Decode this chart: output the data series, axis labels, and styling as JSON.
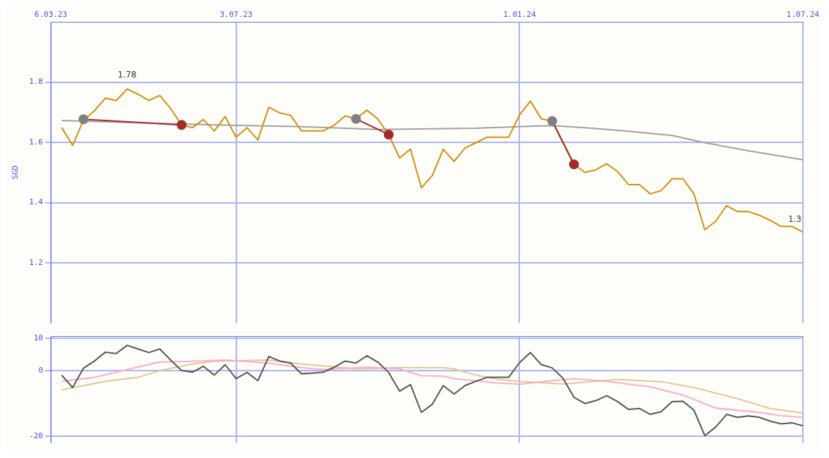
{
  "chart_data": [
    {
      "type": "line",
      "ylabel": "SGD",
      "x": [
        "2023-03-13",
        "2023-03-20",
        "2023-03-27",
        "2023-04-03",
        "2023-04-10",
        "2023-04-17",
        "2023-04-24",
        "2023-05-01",
        "2023-05-08",
        "2023-05-15",
        "2023-05-22",
        "2023-05-29",
        "2023-06-05",
        "2023-06-12",
        "2023-06-19",
        "2023-06-26",
        "2023-07-03",
        "2023-07-10",
        "2023-07-17",
        "2023-07-24",
        "2023-07-31",
        "2023-08-07",
        "2023-08-14",
        "2023-08-21",
        "2023-08-28",
        "2023-09-04",
        "2023-09-11",
        "2023-09-18",
        "2023-09-25",
        "2023-10-02",
        "2023-10-09",
        "2023-10-16",
        "2023-10-23",
        "2023-10-30",
        "2023-11-06",
        "2023-11-13",
        "2023-11-20",
        "2023-11-27",
        "2023-12-04",
        "2023-12-11",
        "2023-12-18",
        "2023-12-25",
        "2024-01-01",
        "2024-01-08",
        "2024-01-15",
        "2024-01-22",
        "2024-01-29",
        "2024-02-05",
        "2024-02-12",
        "2024-02-19",
        "2024-02-26",
        "2024-03-04",
        "2024-03-11",
        "2024-03-18",
        "2024-03-25",
        "2024-04-01",
        "2024-04-08",
        "2024-04-15",
        "2024-04-22",
        "2024-04-29",
        "2024-05-06",
        "2024-05-13",
        "2024-05-20",
        "2024-05-27",
        "2024-06-03",
        "2024-06-10",
        "2024-06-17",
        "2024-06-24",
        "2024-07-01"
      ],
      "series": [
        {
          "color": "#a0a0a0",
          "x": [
            "2023-03-13",
            "2023-06-19",
            "2023-08-14",
            "2023-10-02",
            "2023-12-04",
            "2024-01-01",
            "2024-01-22",
            "2024-02-12",
            "2024-03-11",
            "2024-04-08",
            "2024-04-29",
            "2024-05-27",
            "2024-07-01"
          ],
          "values": [
            1.673,
            1.658,
            1.652,
            1.643,
            1.647,
            1.652,
            1.656,
            1.649,
            1.637,
            1.623,
            1.599,
            1.572,
            1.542
          ]
        },
        {
          "color": "#d4900a",
          "values": [
            1.649,
            1.59,
            1.674,
            1.705,
            1.747,
            1.739,
            1.777,
            1.76,
            1.739,
            1.756,
            1.712,
            1.658,
            1.649,
            1.676,
            1.638,
            1.686,
            1.617,
            1.649,
            1.608,
            1.717,
            1.698,
            1.69,
            1.638,
            1.638,
            1.638,
            1.657,
            1.688,
            1.678,
            1.707,
            1.678,
            1.626,
            1.548,
            1.578,
            1.449,
            1.49,
            1.577,
            1.537,
            1.581,
            1.599,
            1.617,
            1.617,
            1.617,
            1.691,
            1.737,
            1.678,
            1.671,
            1.599,
            1.527,
            1.5,
            1.509,
            1.529,
            1.503,
            1.46,
            1.46,
            1.429,
            1.44,
            1.479,
            1.479,
            1.429,
            1.31,
            1.338,
            1.39,
            1.37,
            1.37,
            1.358,
            1.341,
            1.321,
            1.321,
            1.302
          ]
        },
        {
          "color": "#a52a2a",
          "colors": [
            "#808080",
            "#a52a2a"
          ],
          "marker": "circle",
          "x": [
            "2023-03-27",
            "2023-05-29"
          ],
          "values": [
            1.677,
            1.658
          ]
        },
        {
          "color": "#a52a2a",
          "colors": [
            "#808080",
            "#a52a2a"
          ],
          "marker": "circle",
          "x": [
            "2023-09-18",
            "2023-10-09"
          ],
          "values": [
            1.678,
            1.626
          ]
        },
        {
          "color": "#a52a2a",
          "colors": [
            "#808080",
            "#a52a2a"
          ],
          "marker": "circle",
          "x": [
            "2024-01-22",
            "2024-02-05"
          ],
          "values": [
            1.671,
            1.527
          ]
        }
      ],
      "xlim": [
        "2023-03-06",
        "2024-07-01"
      ],
      "xticks": [
        {
          "value": "2023-03-06",
          "label": "6.03.23"
        },
        {
          "value": "2023-07-03",
          "label": "3.07.23"
        },
        {
          "value": "2024-01-01",
          "label": "1.01.24"
        },
        {
          "value": "2024-07-01",
          "label": "1.07.24"
        }
      ],
      "ylim": [
        1.0,
        2.0
      ],
      "yticks": [
        1.2,
        1.4,
        1.6,
        1.8
      ],
      "grid": true,
      "legend": false,
      "marker": "none",
      "annotations": [
        {
          "text": "1.78",
          "x": "2023-04-24",
          "y": 1.78
        },
        {
          "text": "1.3",
          "x": "2024-07-01",
          "y": 1.3
        }
      ]
    },
    {
      "type": "line",
      "x": [
        "2023-03-13",
        "2023-03-20",
        "2023-03-27",
        "2023-04-03",
        "2023-04-10",
        "2023-04-17",
        "2023-04-24",
        "2023-05-01",
        "2023-05-08",
        "2023-05-15",
        "2023-05-22",
        "2023-05-29",
        "2023-06-05",
        "2023-06-12",
        "2023-06-19",
        "2023-06-26",
        "2023-07-03",
        "2023-07-10",
        "2023-07-17",
        "2023-07-24",
        "2023-07-31",
        "2023-08-07",
        "2023-08-14",
        "2023-08-21",
        "2023-08-28",
        "2023-09-04",
        "2023-09-11",
        "2023-09-18",
        "2023-09-25",
        "2023-10-02",
        "2023-10-09",
        "2023-10-16",
        "2023-10-23",
        "2023-10-30",
        "2023-11-06",
        "2023-11-13",
        "2023-11-20",
        "2023-11-27",
        "2023-12-04",
        "2023-12-11",
        "2023-12-18",
        "2023-12-25",
        "2024-01-01",
        "2024-01-08",
        "2024-01-15",
        "2024-01-22",
        "2024-01-29",
        "2024-02-05",
        "2024-02-12",
        "2024-02-19",
        "2024-02-26",
        "2024-03-04",
        "2024-03-11",
        "2024-03-18",
        "2024-03-25",
        "2024-04-01",
        "2024-04-08",
        "2024-04-15",
        "2024-04-22",
        "2024-04-29",
        "2024-05-06",
        "2024-05-13",
        "2024-05-20",
        "2024-05-27",
        "2024-06-03",
        "2024-06-10",
        "2024-06-17",
        "2024-06-24",
        "2024-07-01"
      ],
      "series": [
        {
          "color": "#e0c890",
          "x": [
            "2023-03-13",
            "2023-04-10",
            "2023-05-01",
            "2023-05-15",
            "2023-06-05",
            "2023-06-19",
            "2023-07-24",
            "2023-08-14",
            "2023-09-18",
            "2023-10-16",
            "2023-11-13",
            "2023-11-20",
            "2023-12-04",
            "2023-12-18",
            "2024-01-01",
            "2024-01-29",
            "2024-03-04",
            "2024-04-01",
            "2024-04-22",
            "2024-05-20",
            "2024-06-10",
            "2024-07-01"
          ],
          "values": [
            -5.8,
            -3.2,
            -2.0,
            0.1,
            2.1,
            2.9,
            3.3,
            2.1,
            0.6,
            1.0,
            1.0,
            0.6,
            -1.3,
            -2.6,
            -3.2,
            -4.0,
            -2.6,
            -3.3,
            -5.1,
            -8.5,
            -11.5,
            -12.9
          ]
        },
        {
          "color": "#ffaacc",
          "x": [
            "2023-03-13",
            "2023-04-03",
            "2023-04-17",
            "2023-05-15",
            "2023-06-05",
            "2023-06-26",
            "2023-07-24",
            "2023-08-14",
            "2023-08-28",
            "2023-09-25",
            "2023-10-16",
            "2023-10-30",
            "2023-11-13",
            "2023-11-20",
            "2023-12-18",
            "2024-01-01",
            "2024-01-22",
            "2024-02-05",
            "2024-02-26",
            "2024-03-25",
            "2024-04-15",
            "2024-05-06",
            "2024-06-03",
            "2024-06-17",
            "2024-07-01"
          ],
          "values": [
            -3.2,
            -2.0,
            -0.4,
            2.7,
            2.9,
            3.3,
            2.4,
            1.0,
            0.4,
            1.1,
            0.6,
            -1.5,
            -1.6,
            -2.4,
            -3.7,
            -4.1,
            -3.0,
            -2.4,
            -3.2,
            -4.9,
            -7.4,
            -11.4,
            -12.7,
            -13.7,
            -14.2
          ]
        },
        {
          "color": "#555555",
          "values": [
            -1.3,
            -5.1,
            0.8,
            3.0,
            5.7,
            5.3,
            7.8,
            6.7,
            5.6,
            6.7,
            3.3,
            0.1,
            -0.4,
            1.4,
            -1.3,
            1.9,
            -2.4,
            -0.5,
            -3.0,
            4.4,
            3.0,
            2.4,
            -0.9,
            -0.7,
            -0.4,
            1.1,
            3.0,
            2.4,
            4.6,
            2.7,
            -0.5,
            -6.2,
            -4.2,
            -12.7,
            -10.2,
            -4.5,
            -7.1,
            -4.5,
            -3.2,
            -2.0,
            -2.0,
            -2.0,
            2.5,
            5.6,
            1.9,
            0.9,
            -2.3,
            -8.1,
            -10.0,
            -9.1,
            -7.6,
            -9.4,
            -11.8,
            -11.5,
            -13.3,
            -12.5,
            -9.4,
            -9.3,
            -12.0,
            -19.8,
            -17.2,
            -13.3,
            -14.2,
            -13.8,
            -14.2,
            -15.4,
            -16.2,
            -15.9,
            -16.8
          ]
        }
      ],
      "xlim": [
        "2023-03-06",
        "2024-07-01"
      ],
      "xticks": [
        {
          "value": "2023-03-06",
          "label": null
        },
        {
          "value": "2023-07-03",
          "label": null
        },
        {
          "value": "2024-01-01",
          "label": null
        },
        {
          "value": "2024-07-01",
          "label": null
        }
      ],
      "ylim": [
        -22,
        10.5
      ],
      "yticks": [
        -20,
        0,
        10
      ],
      "grid": true,
      "legend": false,
      "marker": "none",
      "tick_labels": "y"
    }
  ]
}
